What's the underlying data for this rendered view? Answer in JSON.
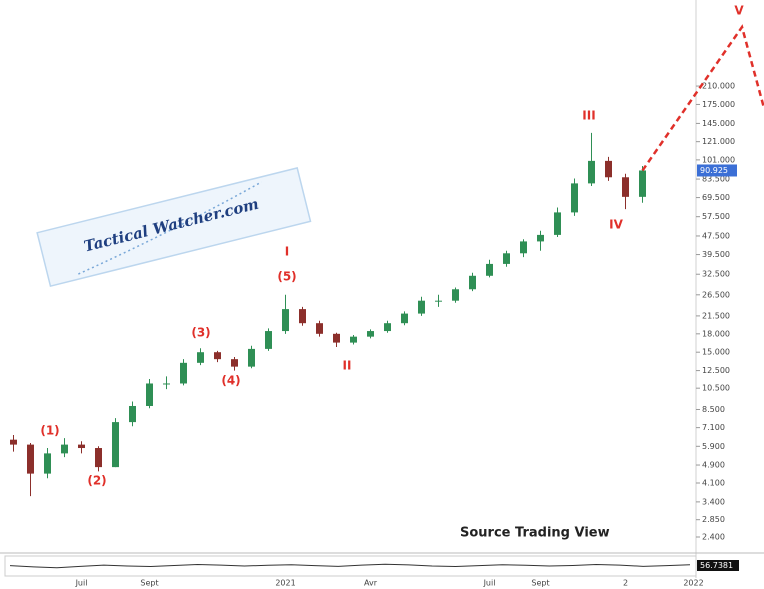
{
  "chart_data": {
    "type": "candlestick",
    "watermark": "Tactical Watcher.com",
    "source": "Source Trading View",
    "annotations": [
      "(1)",
      "(2)",
      "(3)",
      "(4)",
      "(5)",
      "I",
      "II",
      "III",
      "IV",
      "V"
    ],
    "annotation_color": "#e0302a",
    "log_scale": true,
    "grid": false,
    "up_color": "#2f8f55",
    "down_color": "#8c2f2b",
    "price_label_color": "#3b6fd6",
    "categories": [
      null,
      null,
      null,
      null,
      "Juil",
      null,
      null,
      null,
      "Sept",
      null,
      null,
      null,
      null,
      null,
      null,
      null,
      "2021",
      null,
      null,
      null,
      null,
      "Avr",
      null,
      null,
      null,
      null,
      null,
      null,
      "Juil",
      null,
      null,
      "Sept",
      null,
      null,
      null,
      null,
      "2",
      null,
      null,
      null,
      "2022"
    ],
    "open": [
      6.3,
      6.0,
      4.5,
      5.5,
      6.0,
      5.8,
      4.8,
      7.5,
      8.8,
      11.0,
      11.0,
      13.5,
      15.0,
      14.0,
      13.0,
      15.5,
      18.5,
      23,
      20,
      18,
      16.5,
      17.5,
      18.5,
      20,
      22,
      25,
      25,
      28,
      32,
      36,
      40,
      45,
      48,
      60,
      80,
      100,
      85,
      70,
      null,
      null,
      null
    ],
    "high": [
      6.6,
      6.1,
      5.8,
      6.4,
      6.2,
      5.9,
      7.8,
      9.2,
      11.5,
      11.8,
      14.0,
      15.6,
      15.2,
      14.3,
      16.0,
      19.0,
      26.5,
      23.5,
      20.5,
      18.2,
      17.8,
      18.8,
      20.5,
      22.5,
      26,
      26.5,
      28.5,
      33,
      37.5,
      41,
      46,
      50,
      63,
      84,
      132,
      104,
      88,
      95,
      null,
      null,
      null
    ],
    "low": [
      5.6,
      3.6,
      4.3,
      5.3,
      5.5,
      4.6,
      4.8,
      7.2,
      8.6,
      10.4,
      10.8,
      13.2,
      13.6,
      12.5,
      12.8,
      15.2,
      18.0,
      19.5,
      17.5,
      15.8,
      16.2,
      17.2,
      18.2,
      19.6,
      21.5,
      23.5,
      24.5,
      27.5,
      31.5,
      35,
      38.5,
      41,
      47,
      58,
      78,
      82,
      62,
      66,
      null,
      null,
      null
    ],
    "close": [
      6.0,
      4.5,
      5.5,
      6.0,
      5.8,
      4.8,
      7.5,
      8.8,
      11.0,
      11.0,
      13.5,
      15.0,
      14.0,
      13.0,
      15.5,
      18.5,
      23,
      20,
      18,
      16.5,
      17.5,
      18.5,
      20,
      22,
      25,
      25,
      28,
      32,
      36,
      40,
      45,
      48,
      60,
      80,
      100,
      85,
      70,
      90.925,
      null,
      null,
      null
    ],
    "ylim": [
      2.11,
      493
    ],
    "yticks": [
      {
        "value": 210,
        "label": "210.000"
      },
      {
        "value": 175,
        "label": "175.000"
      },
      {
        "value": 145,
        "label": "145.000"
      },
      {
        "value": 121,
        "label": "121.000"
      },
      {
        "value": 101,
        "label": "101.000"
      },
      {
        "value": 83.5,
        "label": "83.500"
      },
      {
        "value": 69.5,
        "label": "69.500"
      },
      {
        "value": 57.5,
        "label": "57.500"
      },
      {
        "value": 47.5,
        "label": "47.500"
      },
      {
        "value": 39.5,
        "label": "39.500"
      },
      {
        "value": 32.5,
        "label": "32.500"
      },
      {
        "value": 26.5,
        "label": "26.500"
      },
      {
        "value": 21.5,
        "label": "21.500"
      },
      {
        "value": 18,
        "label": "18.000"
      },
      {
        "value": 15,
        "label": "15.000"
      },
      {
        "value": 12.5,
        "label": "12.500"
      },
      {
        "value": 10.5,
        "label": "10.500"
      },
      {
        "value": 8.5,
        "label": "8.500"
      },
      {
        "value": 7.1,
        "label": "7.100"
      },
      {
        "value": 5.9,
        "label": "5.900"
      },
      {
        "value": 4.9,
        "label": "4.900"
      },
      {
        "value": 4.1,
        "label": "4.100"
      },
      {
        "value": 3.4,
        "label": "3.400"
      },
      {
        "value": 2.85,
        "label": "2.850"
      },
      {
        "value": 2.4,
        "label": "2.400"
      }
    ],
    "indicator": {
      "values": [
        52,
        45,
        40,
        48,
        55,
        50,
        47,
        53,
        58,
        55,
        50,
        54,
        57,
        52,
        48,
        55,
        60,
        56,
        50,
        47,
        52,
        57,
        54,
        50,
        53,
        58,
        55,
        48,
        52,
        56.7381
      ],
      "ylim": [
        0,
        100
      ],
      "color": "#333333"
    }
  }
}
